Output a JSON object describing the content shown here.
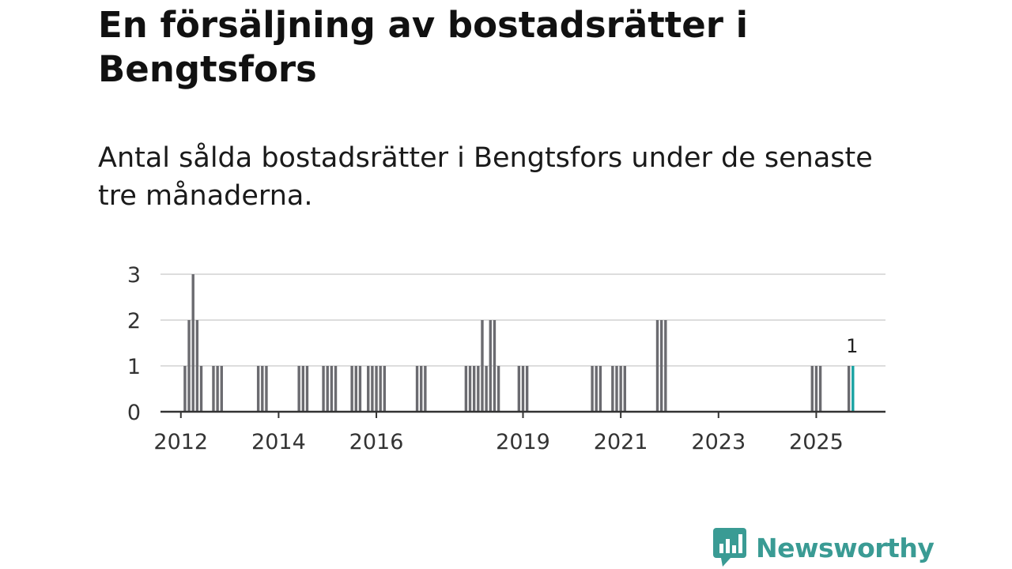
{
  "header": {
    "title": "En försäljning av bostadsrätter i Bengtsfors",
    "subtitle": "Antal sålda bostadsrätter i Bengtsfors under de senaste tre månaderna."
  },
  "brand": {
    "name": "Newsworthy",
    "color": "#3a9b94",
    "icon": "newsworthy-logo-icon"
  },
  "colors": {
    "bar": "#6b6b70",
    "highlight": "#1aa3a3",
    "grid": "#dddddd",
    "axis": "#333333"
  },
  "chart_data": {
    "type": "bar",
    "title": "En försäljning av bostadsrätter i Bengtsfors",
    "subtitle": "Antal sålda bostadsrätter i Bengtsfors under de senaste tre månaderna.",
    "xlabel": "",
    "ylabel": "",
    "x_unit": "month",
    "ylim": [
      0,
      3
    ],
    "yticks": [
      0,
      1,
      2,
      3
    ],
    "xlim": [
      "2011-08",
      "2026-06"
    ],
    "xticks": [
      {
        "label": "2012",
        "month": "2012-01"
      },
      {
        "label": "2014",
        "month": "2014-01"
      },
      {
        "label": "2016",
        "month": "2016-01"
      },
      {
        "label": "2019",
        "month": "2019-01"
      },
      {
        "label": "2021",
        "month": "2021-01"
      },
      {
        "label": "2023",
        "month": "2023-01"
      },
      {
        "label": "2025",
        "month": "2025-01"
      }
    ],
    "grid": true,
    "series": [
      {
        "name": "Sålda bostadsrätter",
        "points": [
          [
            "2012-02",
            1
          ],
          [
            "2012-03",
            2
          ],
          [
            "2012-04",
            3
          ],
          [
            "2012-05",
            2
          ],
          [
            "2012-06",
            1
          ],
          [
            "2012-09",
            1
          ],
          [
            "2012-10",
            1
          ],
          [
            "2012-11",
            1
          ],
          [
            "2013-08",
            1
          ],
          [
            "2013-09",
            1
          ],
          [
            "2013-10",
            1
          ],
          [
            "2014-06",
            1
          ],
          [
            "2014-07",
            1
          ],
          [
            "2014-08",
            1
          ],
          [
            "2014-12",
            1
          ],
          [
            "2015-01",
            1
          ],
          [
            "2015-02",
            1
          ],
          [
            "2015-03",
            1
          ],
          [
            "2015-07",
            1
          ],
          [
            "2015-08",
            1
          ],
          [
            "2015-09",
            1
          ],
          [
            "2015-11",
            1
          ],
          [
            "2015-12",
            1
          ],
          [
            "2016-01",
            1
          ],
          [
            "2016-02",
            1
          ],
          [
            "2016-03",
            1
          ],
          [
            "2016-11",
            1
          ],
          [
            "2016-12",
            1
          ],
          [
            "2017-01",
            1
          ],
          [
            "2017-11",
            1
          ],
          [
            "2017-12",
            1
          ],
          [
            "2018-01",
            1
          ],
          [
            "2018-02",
            1
          ],
          [
            "2018-03",
            2
          ],
          [
            "2018-04",
            1
          ],
          [
            "2018-05",
            2
          ],
          [
            "2018-06",
            2
          ],
          [
            "2018-07",
            1
          ],
          [
            "2018-12",
            1
          ],
          [
            "2019-01",
            1
          ],
          [
            "2019-02",
            1
          ],
          [
            "2020-06",
            1
          ],
          [
            "2020-07",
            1
          ],
          [
            "2020-08",
            1
          ],
          [
            "2020-11",
            1
          ],
          [
            "2020-12",
            1
          ],
          [
            "2021-01",
            1
          ],
          [
            "2021-02",
            1
          ],
          [
            "2021-10",
            2
          ],
          [
            "2021-11",
            2
          ],
          [
            "2021-12",
            2
          ],
          [
            "2024-12",
            1
          ],
          [
            "2025-01",
            1
          ],
          [
            "2025-02",
            1
          ],
          [
            "2025-09",
            1
          ]
        ]
      }
    ],
    "highlight": {
      "month": "2025-10",
      "value": 1,
      "label": "1"
    }
  }
}
